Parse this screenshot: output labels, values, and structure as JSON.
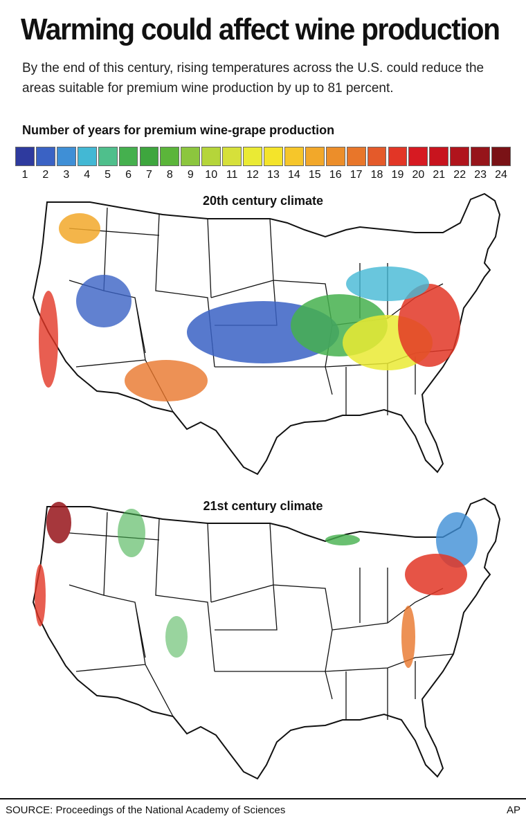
{
  "headline": "Warming could affect wine production",
  "subhead": "By the end of this century, rising temperatures across the U.S. could reduce the areas suitable for premium wine production by up to 81 percent.",
  "legend": {
    "title": "Number of years for premium wine-grape production",
    "ticks": [
      "1",
      "2",
      "3",
      "4",
      "5",
      "6",
      "7",
      "8",
      "9",
      "10",
      "11",
      "12",
      "13",
      "14",
      "15",
      "16",
      "17",
      "18",
      "19",
      "20",
      "21",
      "22",
      "23",
      "24"
    ],
    "colors": [
      "#2e3a9e",
      "#3a62c4",
      "#3f8fd6",
      "#43b8d4",
      "#4fbf8c",
      "#45b04e",
      "#3ea63e",
      "#5bb53a",
      "#8cc63e",
      "#b5d53a",
      "#d6e03a",
      "#eaea34",
      "#f4e42a",
      "#f6c62a",
      "#f2a82a",
      "#ec8e2a",
      "#e8762a",
      "#e45a2a",
      "#e23626",
      "#d61a22",
      "#c8141e",
      "#b0141c",
      "#96141a",
      "#7a1216"
    ]
  },
  "maps": [
    {
      "title": "20th century climate",
      "color_scheme": [
        "#2e3a9e",
        "#3f8fd6",
        "#45b04e",
        "#eaea34",
        "#f2a82a",
        "#e23626",
        "#96141a"
      ]
    },
    {
      "title": "21st century climate",
      "color_scheme": [
        "#3f8fd6",
        "#45b04e",
        "#f2a82a",
        "#e23626",
        "#96141a"
      ]
    }
  ],
  "footer": {
    "source": "SOURCE: Proceedings of the National Academy of Sciences",
    "credit": "AP"
  }
}
